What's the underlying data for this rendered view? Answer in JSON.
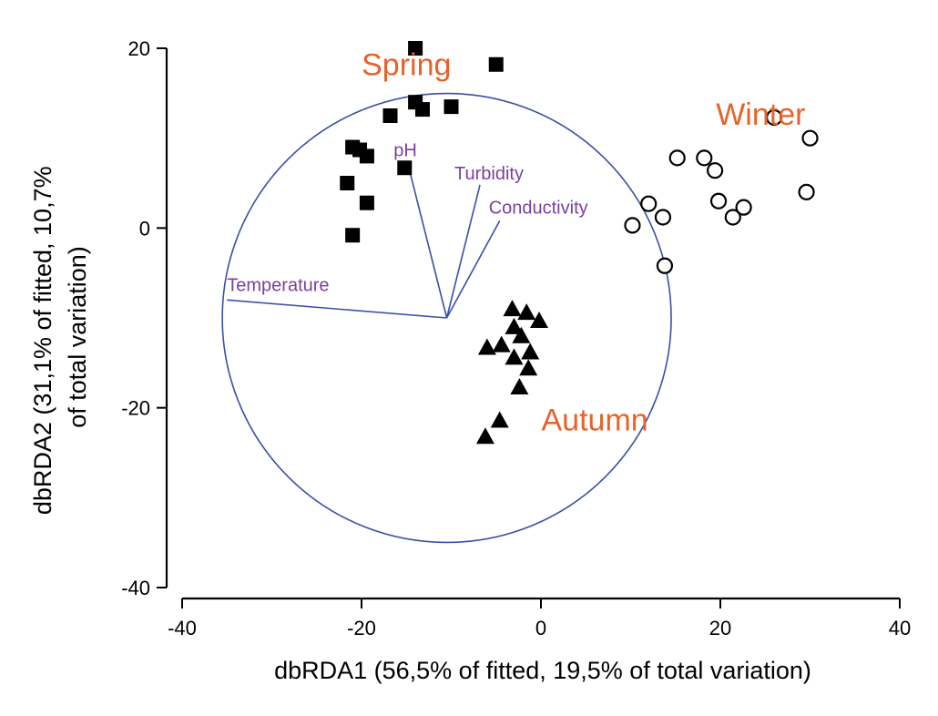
{
  "chart_data": {
    "type": "scatter",
    "xlabel": "dbRDA1 (56,5% of fitted, 19,5% of total variation)",
    "ylabel_lines": [
      "dbRDA2 (31,1% of fitted, 10,7%",
      "of total variation)"
    ],
    "xlim": [
      -40,
      40
    ],
    "ylim": [
      -40,
      20
    ],
    "x_ticks": [
      -40,
      -20,
      0,
      20,
      40
    ],
    "y_ticks": [
      -40,
      -20,
      0,
      20
    ],
    "x_tick_labels": [
      "-40",
      "-20",
      "0",
      "20",
      "40"
    ],
    "y_tick_labels": [
      "-40",
      "-20",
      "0",
      "20"
    ],
    "grid": false,
    "series": [
      {
        "name": "Spring",
        "marker": "filled-square",
        "points": [
          [
            -14,
            20
          ],
          [
            -5,
            18.2
          ],
          [
            -14,
            14
          ],
          [
            -13.2,
            13.2
          ],
          [
            -10,
            13.5
          ],
          [
            -16.8,
            12.5
          ],
          [
            -21,
            9
          ],
          [
            -20.2,
            8.7
          ],
          [
            -19.4,
            8
          ],
          [
            -15.2,
            6.7
          ],
          [
            -21.6,
            5
          ],
          [
            -19.4,
            2.8
          ],
          [
            -21,
            -0.8
          ]
        ]
      },
      {
        "name": "Winter",
        "marker": "open-circle",
        "points": [
          [
            26,
            12.3
          ],
          [
            30,
            10
          ],
          [
            15.2,
            7.8
          ],
          [
            18.2,
            7.8
          ],
          [
            19.4,
            6.4
          ],
          [
            29.6,
            4
          ],
          [
            19.8,
            3
          ],
          [
            22.6,
            2.3
          ],
          [
            12,
            2.7
          ],
          [
            21.4,
            1.2
          ],
          [
            13.6,
            1.2
          ],
          [
            10.2,
            0.3
          ],
          [
            13.8,
            -4.2
          ]
        ]
      },
      {
        "name": "Autumn",
        "marker": "filled-triangle",
        "points": [
          [
            -3.2,
            -9
          ],
          [
            -1.6,
            -9.4
          ],
          [
            -0.2,
            -10.3
          ],
          [
            -3,
            -11
          ],
          [
            -2.2,
            -12
          ],
          [
            -6,
            -13.3
          ],
          [
            -4.4,
            -13
          ],
          [
            -1.2,
            -13.8
          ],
          [
            -3,
            -14.4
          ],
          [
            -1.4,
            -15.6
          ],
          [
            -2.4,
            -17.7
          ],
          [
            -4.6,
            -21.4
          ],
          [
            -6.2,
            -23.2
          ]
        ]
      }
    ],
    "group_labels": [
      {
        "text": "Spring",
        "x": -15,
        "y": 17,
        "color": "#E8622A"
      },
      {
        "text": "Winter",
        "x": 24.5,
        "y": 11.5,
        "color": "#E8622A"
      },
      {
        "text": "Autumn",
        "x": 6,
        "y": -22.5,
        "color": "#E8622A"
      }
    ],
    "circle": {
      "center": [
        -10.5,
        -10
      ],
      "radius": 25,
      "color": "#3A4FA8"
    },
    "vectors": {
      "origin": [
        -10.5,
        -10
      ],
      "color": "#3A4FA8",
      "label_color": "#7A3FA0",
      "items": [
        {
          "name": "pH",
          "end": [
            -14.8,
            7
          ]
        },
        {
          "name": "Turbidity",
          "end": [
            -6.8,
            4.8
          ]
        },
        {
          "name": "Conductivity",
          "end": [
            -4.6,
            0.8
          ]
        },
        {
          "name": "Temperature",
          "end": [
            -35,
            -8
          ]
        }
      ]
    }
  }
}
